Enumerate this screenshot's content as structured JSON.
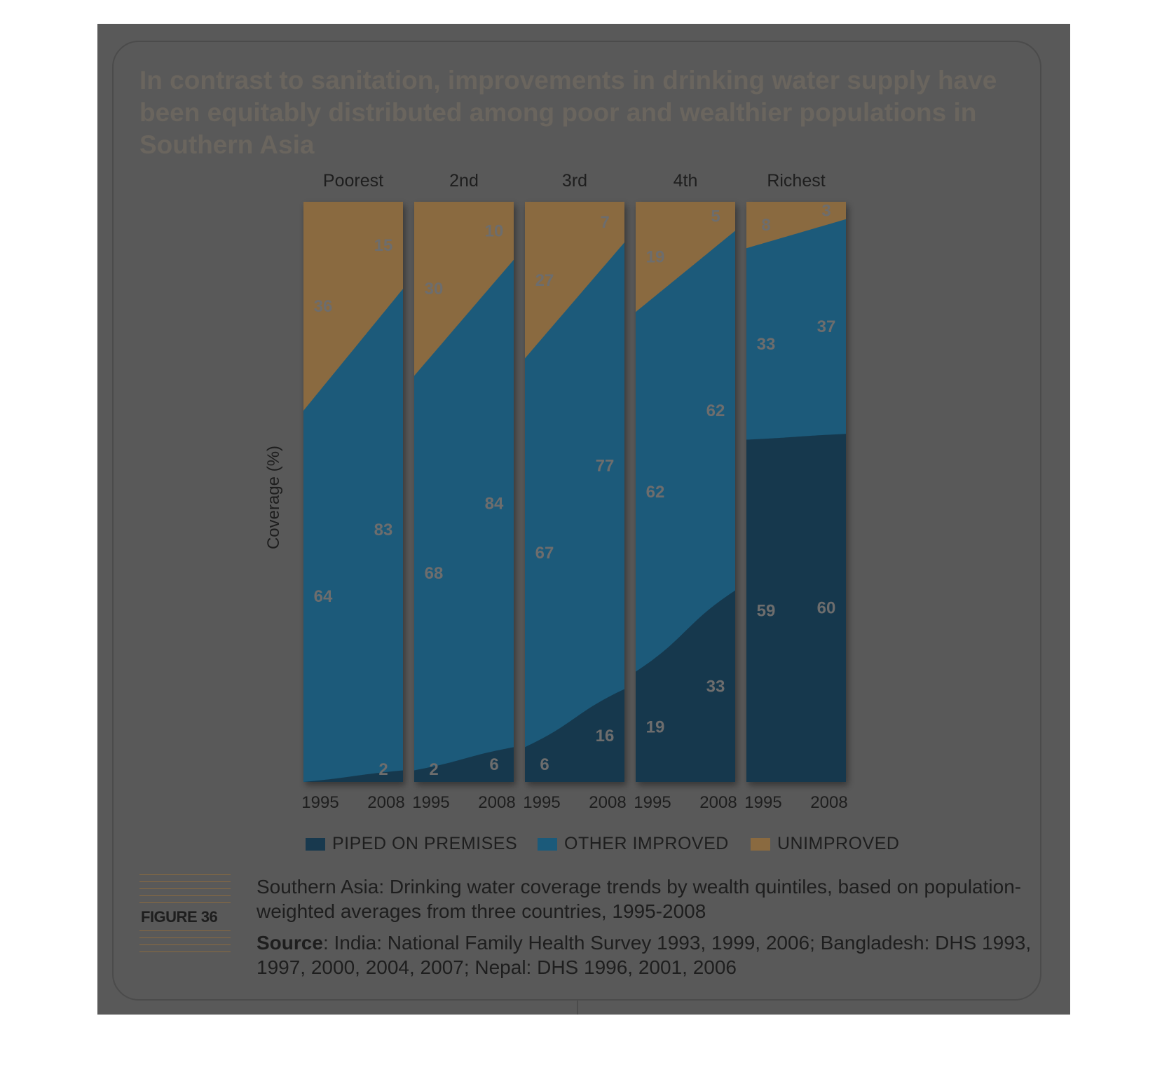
{
  "title": {
    "part1": "In contrast to sanitation, improvements in drinking water supply have been equitably distributed among poor and wealthier populations in Southern Asia"
  },
  "colors": {
    "piped": "#18394e",
    "other": "#1b5a7a",
    "unimproved": "#8a6a40",
    "panel": "#595959"
  },
  "chart_data": {
    "type": "area",
    "ylabel": "Coverage (%)",
    "ylim": [
      0,
      100
    ],
    "groups": [
      "Poorest",
      "2nd",
      "3rd",
      "4th",
      "Richest"
    ],
    "x": [
      "1995",
      "2008"
    ],
    "series": [
      {
        "name": "PIPED ON PREMISES",
        "values": [
          [
            0,
            2
          ],
          [
            2,
            6
          ],
          [
            6,
            16
          ],
          [
            19,
            33
          ],
          [
            59,
            60
          ]
        ]
      },
      {
        "name": "OTHER IMPROVED",
        "values": [
          [
            64,
            83
          ],
          [
            68,
            84
          ],
          [
            67,
            77
          ],
          [
            62,
            62
          ],
          [
            33,
            37
          ]
        ]
      },
      {
        "name": "UNIMPROVED",
        "values": [
          [
            36,
            15
          ],
          [
            30,
            10
          ],
          [
            27,
            7
          ],
          [
            19,
            5
          ],
          [
            8,
            3
          ]
        ]
      }
    ],
    "labels": {
      "piped": [
        [
          "",
          "2"
        ],
        [
          "2",
          "6"
        ],
        [
          "6",
          "16"
        ],
        [
          "19",
          "33"
        ],
        [
          "59",
          "60"
        ]
      ],
      "other": [
        [
          "64",
          "83"
        ],
        [
          "68",
          "84"
        ],
        [
          "67",
          "77"
        ],
        [
          "62",
          "62"
        ],
        [
          "33",
          "37"
        ]
      ],
      "unimproved": [
        [
          "36",
          "15"
        ],
        [
          "30",
          "10"
        ],
        [
          "27",
          "7"
        ],
        [
          "19",
          "5"
        ],
        [
          "8",
          "3"
        ]
      ]
    },
    "grid": false,
    "legend_position": "bottom"
  },
  "legend": {
    "piped": "PIPED ON PREMISES",
    "other": "OTHER IMPROVED",
    "unimproved": "UNIMPROVED"
  },
  "figure": {
    "label": "FIGURE 36",
    "caption": "Southern Asia: Drinking water coverage trends by wealth quintiles, based on population-weighted averages from three countries, 1995-2008",
    "source_label": "Source",
    "source_text": ": India: National Family Health Survey 1993, 1999, 2006; Bangladesh: DHS 1993, 1997, 2000, 2004, 2007; Nepal: DHS 1996, 2001, 2006"
  }
}
